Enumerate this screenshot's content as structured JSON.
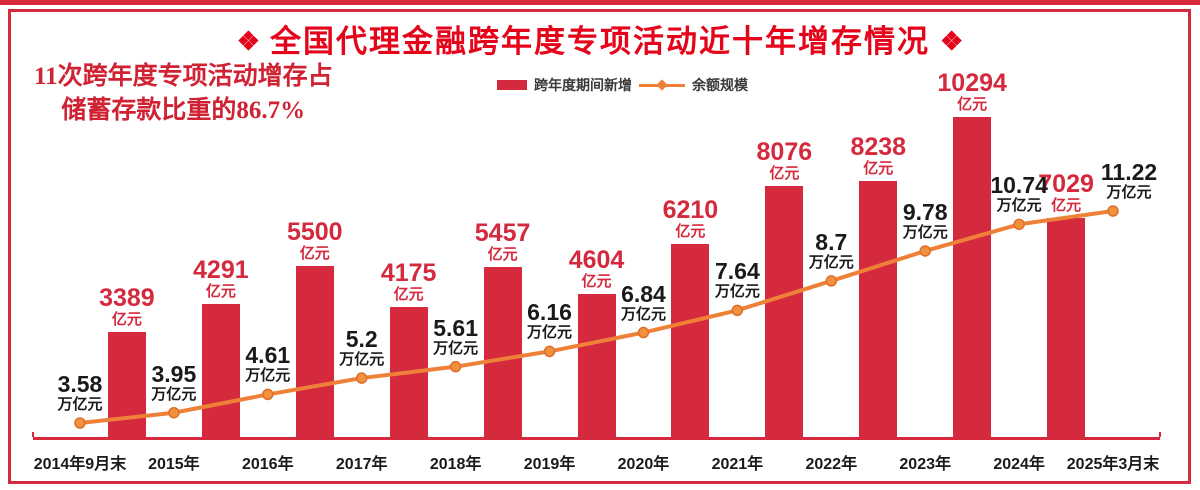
{
  "page": {
    "title": "全国代理金融跨年度专项活动近十年增存情况",
    "title_decor_left": "❖",
    "title_decor_right": "❖",
    "annotation_line1": "11次跨年度专项活动增存占",
    "annotation_line2": "储蓄存款比重的86.7%"
  },
  "legend": {
    "items": [
      {
        "label": "跨年度期间新增",
        "marker": "bar-swatch",
        "color": "#d5293d"
      },
      {
        "label": "余额规模",
        "marker": "line-diamond",
        "color": "#ee8137"
      }
    ]
  },
  "chart_data": {
    "type": "bar+line",
    "title": "全国代理金融跨年度专项活动近十年增存情况",
    "categories": [
      "2014年9月末",
      "2015年",
      "2016年",
      "2017年",
      "2018年",
      "2019年",
      "2020年",
      "2021年",
      "2022年",
      "2023年",
      "2024年",
      "2025年3月末"
    ],
    "series": [
      {
        "name": "跨年度期间新增",
        "type": "bar",
        "unit": "亿元",
        "note": "bars sit between adjacent period end-points",
        "values": [
          3389,
          4291,
          5500,
          4175,
          5457,
          4604,
          6210,
          8076,
          8238,
          10294,
          7029
        ]
      },
      {
        "name": "余额规模",
        "type": "line",
        "unit": "万亿元",
        "values": [
          3.58,
          3.95,
          4.61,
          5.2,
          5.61,
          6.16,
          6.84,
          7.64,
          8.7,
          9.78,
          10.74,
          11.22
        ]
      }
    ],
    "layout": {
      "legend_position": "top-center",
      "grid": false,
      "bar_value_range": [
        0,
        10294
      ],
      "line_value_range": [
        3.58,
        11.22
      ]
    },
    "colors": {
      "bar": "#d5293d",
      "line": "#ee8137",
      "bar_label": "#d5293d",
      "line_label": "#1a1a1a",
      "title": "#e5051b",
      "annotation": "#d02233",
      "frame": "#d5293d"
    }
  }
}
